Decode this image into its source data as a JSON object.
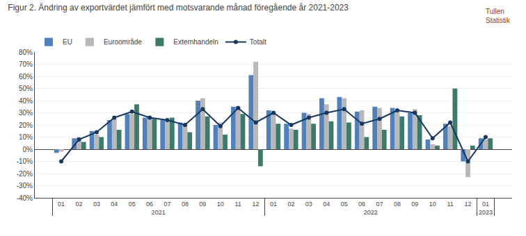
{
  "chart_data": {
    "type": "bar",
    "title": "Figur 2. Ändring av exportvärdet jämfört med motsvarande månad föregående år 2021-2023",
    "annotations": [
      {
        "text": "Tullen\nStatistik",
        "color": "#8B4513"
      }
    ],
    "categories": [
      [
        "2021",
        "01"
      ],
      [
        "2021",
        "02"
      ],
      [
        "2021",
        "03"
      ],
      [
        "2021",
        "04"
      ],
      [
        "2021",
        "05"
      ],
      [
        "2021",
        "06"
      ],
      [
        "2021",
        "07"
      ],
      [
        "2021",
        "08"
      ],
      [
        "2021",
        "09"
      ],
      [
        "2021",
        "10"
      ],
      [
        "2021",
        "11"
      ],
      [
        "2021",
        "12"
      ],
      [
        "2022",
        "01"
      ],
      [
        "2022",
        "02"
      ],
      [
        "2022",
        "03"
      ],
      [
        "2022",
        "04"
      ],
      [
        "2022",
        "05"
      ],
      [
        "2022",
        "06"
      ],
      [
        "2022",
        "07"
      ],
      [
        "2022",
        "08"
      ],
      [
        "2022",
        "09"
      ],
      [
        "2022",
        "10"
      ],
      [
        "2022",
        "11"
      ],
      [
        "2022",
        "12"
      ],
      [
        "2023",
        "01"
      ]
    ],
    "series": [
      {
        "name": "EU",
        "type": "bar",
        "color": "#4F81BD",
        "values": [
          -3,
          9,
          15,
          24,
          29,
          26,
          24,
          22,
          40,
          20,
          35,
          61,
          32,
          21,
          30,
          42,
          43,
          31,
          35,
          34,
          30,
          8,
          21,
          -10,
          9
        ]
      },
      {
        "name": "Euroområde",
        "type": "bar",
        "color": "#B8B8B8",
        "values": [
          -2,
          10,
          12,
          25,
          29,
          27,
          23,
          21,
          42,
          22,
          35,
          72,
          31,
          17,
          29,
          37,
          42,
          32,
          34,
          33,
          33,
          4,
          19,
          -23,
          8
        ]
      },
      {
        "name": "Externhandeln",
        "type": "bar",
        "color": "#3D7A6A",
        "values": [
          0,
          6,
          10,
          16,
          37,
          25,
          26,
          14,
          27,
          12,
          29,
          -14,
          21,
          16,
          21,
          23,
          22,
          10,
          16,
          27,
          28,
          3,
          50,
          3,
          9
        ]
      },
      {
        "name": "Totalt",
        "type": "line",
        "marker": "circle",
        "color": "#17375E",
        "values": [
          -10,
          8,
          14,
          26,
          31,
          26,
          24,
          20,
          33,
          19,
          34,
          22,
          30,
          20,
          26,
          30,
          33,
          21,
          25,
          32,
          30,
          9,
          22,
          -10,
          10
        ]
      }
    ],
    "ylim": [
      -40,
      80
    ],
    "yticks": [
      {
        "value": -40,
        "label": "-40%"
      },
      {
        "value": -30,
        "label": "-30%"
      },
      {
        "value": -20,
        "label": "-20%"
      },
      {
        "value": -10,
        "label": "-10%"
      },
      {
        "value": 0,
        "label": "0%"
      },
      {
        "value": 10,
        "label": "10%"
      },
      {
        "value": 20,
        "label": "20%"
      },
      {
        "value": 30,
        "label": "30%"
      },
      {
        "value": 40,
        "label": "40%"
      },
      {
        "value": 50,
        "label": "50%"
      },
      {
        "value": 60,
        "label": "60%"
      },
      {
        "value": 70,
        "label": "70%"
      },
      {
        "value": 80,
        "label": "80%"
      }
    ],
    "grid": true,
    "legend": "upper left"
  }
}
